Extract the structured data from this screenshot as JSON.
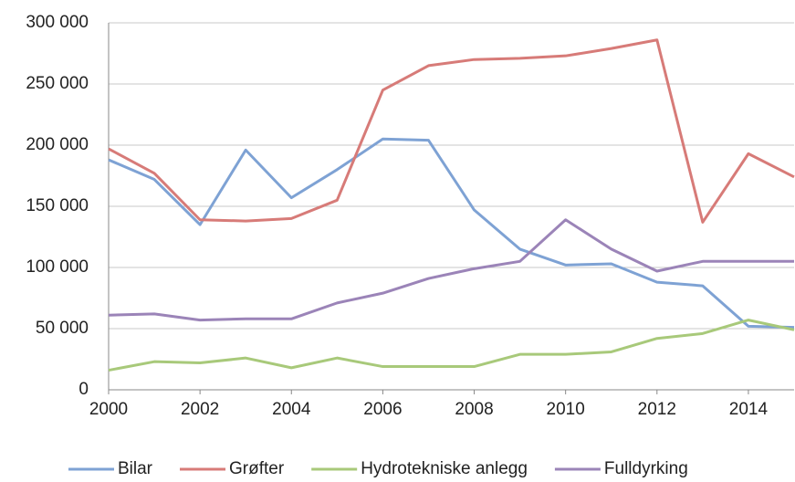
{
  "chart_data": {
    "type": "line",
    "x": [
      2000,
      2001,
      2002,
      2003,
      2004,
      2005,
      2006,
      2007,
      2008,
      2009,
      2010,
      2011,
      2012,
      2013,
      2014,
      2015
    ],
    "series": [
      {
        "name": "Bilar",
        "color": "#7ea2d4",
        "values": [
          188000,
          172000,
          135000,
          196000,
          157000,
          180000,
          205000,
          204000,
          147000,
          115000,
          102000,
          103000,
          88000,
          85000,
          52000,
          51000
        ]
      },
      {
        "name": "Grøfter",
        "color": "#d77b78",
        "values": [
          197000,
          177000,
          139000,
          138000,
          140000,
          155000,
          245000,
          265000,
          270000,
          271000,
          273000,
          279000,
          286000,
          137000,
          193000,
          174000
        ]
      },
      {
        "name": "Hydrotekniske anlegg",
        "color": "#a8c97a",
        "values": [
          16000,
          23000,
          22000,
          26000,
          18000,
          26000,
          19000,
          19000,
          19000,
          29000,
          29000,
          31000,
          42000,
          46000,
          57000,
          49000
        ]
      },
      {
        "name": "Fulldyrking",
        "color": "#9b84b8",
        "values": [
          61000,
          62000,
          57000,
          58000,
          58000,
          71000,
          79000,
          91000,
          99000,
          105000,
          139000,
          115000,
          97000,
          105000,
          105000,
          105000
        ]
      }
    ],
    "xlim": [
      2000,
      2015
    ],
    "xticks": [
      2000,
      2002,
      2004,
      2006,
      2008,
      2010,
      2012,
      2014
    ],
    "ylim": [
      0,
      300000
    ],
    "yticks": [
      0,
      {
        "value": 50000,
        "label": "50 000"
      },
      {
        "value": 100000,
        "label": "100 000"
      },
      {
        "value": 150000,
        "label": "150 000"
      },
      {
        "value": 200000,
        "label": "200 000"
      },
      {
        "value": 250000,
        "label": "250 000"
      },
      {
        "value": 300000,
        "label": "300 000"
      }
    ],
    "grid": true,
    "legend": "bottom"
  }
}
